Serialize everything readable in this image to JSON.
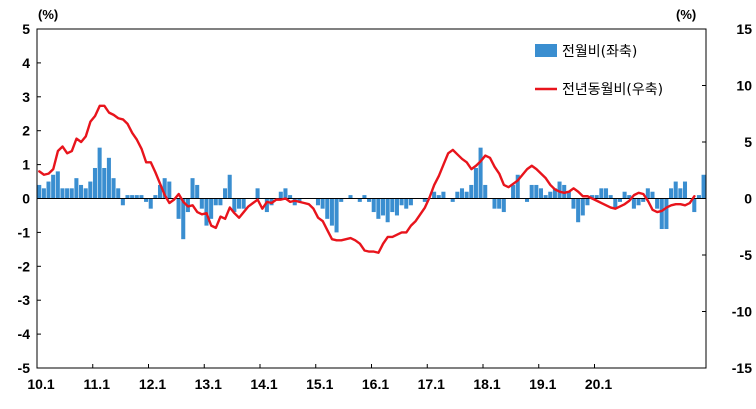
{
  "chart_data": {
    "type": "bar+line",
    "title": "",
    "left_unit": "(%)",
    "right_unit": "(%)",
    "left_ylim": [
      -5,
      5
    ],
    "left_yticks": [
      "5",
      "4",
      "3",
      "2",
      "1",
      "0",
      "-1",
      "-2",
      "-3",
      "-4",
      "-5"
    ],
    "right_ylim": [
      -15,
      15
    ],
    "right_yticks": [
      "15",
      "10",
      "5",
      "0",
      "-5",
      "-10",
      "-15"
    ],
    "x_range": [
      "2010-01",
      "2020-12"
    ],
    "x_tick_labels": [
      "10.1",
      "11.1",
      "12.1",
      "13.1",
      "14.1",
      "15.1",
      "16.1",
      "17.1",
      "18.1",
      "19.1",
      "20.1"
    ],
    "grid": false,
    "legend_position": "top-right",
    "series": [
      {
        "name": "전월비(좌축)",
        "type": "bar",
        "axis": "left",
        "color": "#3a8ed0",
        "values": [
          0.4,
          0.3,
          0.5,
          0.7,
          0.8,
          0.3,
          0.3,
          0.3,
          0.6,
          0.4,
          0.3,
          0.5,
          0.9,
          1.5,
          0.9,
          1.2,
          0.6,
          0.3,
          -0.2,
          0.1,
          0.1,
          0.1,
          0.1,
          -0.1,
          -0.3,
          0.1,
          0.4,
          0.6,
          0.5,
          0.0,
          -0.6,
          -1.2,
          -0.4,
          0.6,
          0.4,
          -0.3,
          -0.8,
          -0.6,
          -0.2,
          -0.2,
          0.3,
          0.7,
          -0.4,
          -0.3,
          -0.3,
          0.0,
          0.0,
          0.3,
          0.0,
          -0.4,
          -0.2,
          0.0,
          0.2,
          0.3,
          0.1,
          -0.2,
          -0.1,
          0.0,
          0.0,
          0.0,
          -0.2,
          -0.3,
          -0.6,
          -0.8,
          -1.0,
          -0.1,
          0.0,
          0.1,
          0.0,
          -0.1,
          0.1,
          -0.1,
          -0.4,
          -0.6,
          -0.5,
          -0.7,
          -0.4,
          -0.5,
          -0.2,
          -0.3,
          -0.2,
          0.0,
          0.0,
          -0.1,
          0.0,
          0.2,
          0.1,
          0.2,
          0.0,
          -0.1,
          0.2,
          0.3,
          0.2,
          0.4,
          0.9,
          1.5,
          0.4,
          0.0,
          -0.3,
          -0.3,
          -0.4,
          0.0,
          0.4,
          0.7,
          0.0,
          -0.1,
          0.4,
          0.4,
          0.3,
          0.1,
          0.2,
          0.3,
          0.5,
          0.4,
          0.2,
          -0.3,
          -0.7,
          -0.5,
          -0.2,
          0.1,
          0.1,
          0.3,
          0.3,
          0.1,
          -0.3,
          -0.1,
          0.2,
          0.1,
          -0.3,
          -0.2,
          -0.1,
          0.3,
          0.2,
          -0.3,
          -0.9,
          -0.9,
          0.3,
          0.5,
          0.3,
          0.5,
          0.0,
          -0.4,
          0.1,
          0.7
        ]
      },
      {
        "name": "전년동월비(우축)",
        "type": "line",
        "axis": "right",
        "color": "#e8141c",
        "values": [
          2.4,
          2.1,
          2.2,
          2.6,
          4.2,
          4.6,
          4.0,
          4.2,
          5.3,
          5.0,
          5.5,
          6.8,
          7.3,
          8.2,
          8.2,
          7.6,
          7.4,
          7.1,
          7.0,
          6.6,
          5.8,
          5.2,
          4.4,
          3.2,
          3.2,
          2.3,
          1.3,
          0.3,
          -0.4,
          -0.1,
          0.4,
          -0.3,
          -0.7,
          -0.6,
          -1.2,
          -1.4,
          -1.3,
          -2.4,
          -2.6,
          -1.6,
          -1.8,
          -0.8,
          -1.3,
          -1.7,
          -1.2,
          -0.7,
          -0.4,
          -0.1,
          -0.9,
          -0.3,
          -0.4,
          -0.1,
          -0.1,
          0.0,
          -0.3,
          -0.2,
          -0.3,
          -0.4,
          -0.5,
          -0.9,
          -1.7,
          -2.0,
          -2.8,
          -3.6,
          -3.7,
          -3.7,
          -3.6,
          -3.5,
          -3.7,
          -4.0,
          -4.6,
          -4.7,
          -4.7,
          -4.8,
          -4.0,
          -3.4,
          -3.4,
          -3.2,
          -3.0,
          -3.0,
          -2.4,
          -2.0,
          -1.4,
          -0.8,
          0.1,
          1.2,
          2.0,
          3.0,
          4.0,
          4.3,
          3.9,
          3.5,
          3.2,
          2.6,
          2.9,
          3.3,
          3.8,
          3.6,
          2.8,
          2.2,
          1.2,
          1.0,
          1.3,
          1.6,
          2.1,
          2.6,
          2.9,
          2.6,
          2.2,
          1.8,
          1.2,
          0.8,
          0.6,
          0.5,
          0.6,
          0.9,
          0.6,
          0.2,
          0.2,
          0.0,
          -0.2,
          -0.4,
          -0.6,
          -0.8,
          -0.9,
          -0.7,
          -0.5,
          -0.2,
          0.3,
          0.5,
          0.4,
          -0.2,
          -1.0,
          -1.2,
          -1.1,
          -0.8,
          -0.6,
          -0.5,
          -0.5,
          -0.6,
          -0.4,
          0.2
        ]
      }
    ]
  }
}
